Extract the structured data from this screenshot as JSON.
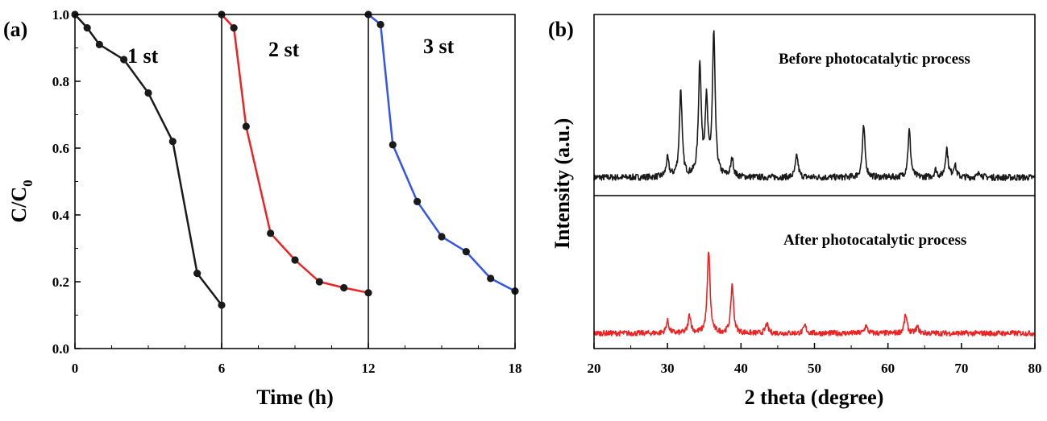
{
  "chart_data": [
    {
      "type": "line",
      "panel_label": "(a)",
      "xlabel": "Time (h)",
      "ylabel_main": "C/C",
      "ylabel_sub": "0",
      "xlim": [
        0,
        18
      ],
      "ylim": [
        0.0,
        1.0
      ],
      "xticks": [
        0,
        6,
        12,
        18
      ],
      "yticks": [
        "0.0",
        "0.2",
        "0.4",
        "0.6",
        "0.8",
        "1.0"
      ],
      "dividers_x": [
        6,
        12
      ],
      "series": [
        {
          "name": "1 st",
          "color": "#1a1a1a",
          "x": [
            0,
            0.5,
            1,
            2,
            3,
            4,
            5,
            6
          ],
          "y": [
            1.0,
            0.96,
            0.91,
            0.865,
            0.765,
            0.62,
            0.225,
            0.13
          ]
        },
        {
          "name": "2 st",
          "color": "#ee2222",
          "x": [
            6,
            6.5,
            7,
            8,
            9,
            10,
            11,
            12
          ],
          "y": [
            1.0,
            0.96,
            0.665,
            0.345,
            0.265,
            0.2,
            0.182,
            0.167
          ]
        },
        {
          "name": "3 st",
          "color": "#3355ee",
          "x": [
            12,
            12.5,
            13,
            14,
            15,
            16,
            17,
            18
          ],
          "y": [
            1.0,
            0.97,
            0.61,
            0.44,
            0.335,
            0.29,
            0.21,
            0.172
          ]
        }
      ]
    },
    {
      "type": "line",
      "panel_label": "(b)",
      "xlabel": "2 theta (degree)",
      "ylabel": "Intensity (a.u.)",
      "xlim": [
        20,
        80
      ],
      "xticks": [
        "20",
        "30",
        "40",
        "50",
        "60",
        "70",
        "80"
      ],
      "series": [
        {
          "name": "Before photocatalytic process",
          "color": "#1a1a1a",
          "baseline": 0.1,
          "peaks": [
            [
              30.0,
              0.1
            ],
            [
              31.8,
              0.48
            ],
            [
              34.4,
              0.62
            ],
            [
              35.3,
              0.4
            ],
            [
              36.3,
              0.78
            ],
            [
              38.8,
              0.1
            ],
            [
              47.6,
              0.12
            ],
            [
              56.7,
              0.28
            ],
            [
              62.9,
              0.26
            ],
            [
              66.5,
              0.04
            ],
            [
              68.0,
              0.16
            ],
            [
              69.1,
              0.07
            ],
            [
              72.5,
              0.03
            ]
          ]
        },
        {
          "name": "After photocatalytic process",
          "color": "#ee2222",
          "baseline": 0.1,
          "peaks": [
            [
              30.0,
              0.08
            ],
            [
              33.0,
              0.12
            ],
            [
              35.6,
              0.54
            ],
            [
              38.8,
              0.32
            ],
            [
              43.5,
              0.06
            ],
            [
              48.7,
              0.05
            ],
            [
              57.0,
              0.05
            ],
            [
              62.4,
              0.12
            ],
            [
              64.0,
              0.04
            ]
          ]
        }
      ]
    }
  ]
}
